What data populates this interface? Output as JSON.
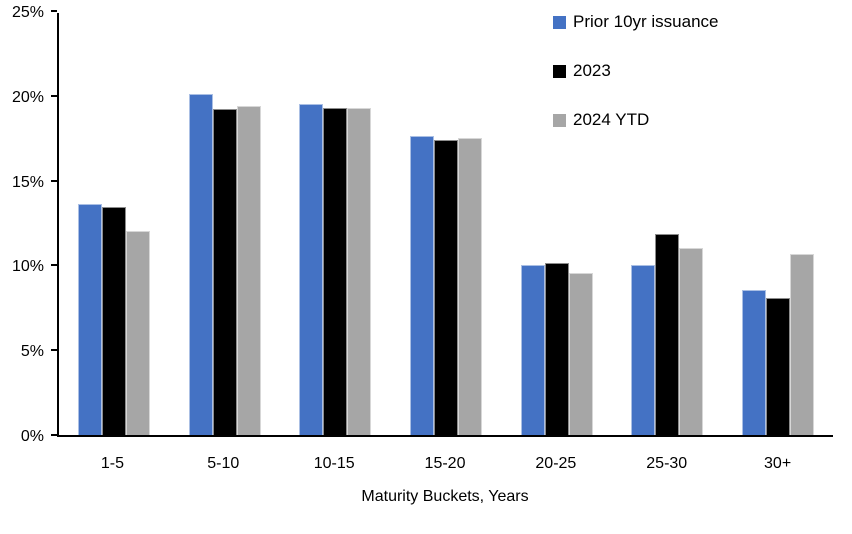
{
  "chart_data": {
    "type": "bar",
    "title": "",
    "categories": [
      "1-5",
      "5-10",
      "10-15",
      "15-20",
      "20-25",
      "25-30",
      "30+"
    ],
    "series": [
      {
        "name": "Prior 10yr issuance",
        "color": "#4472C4",
        "values": [
          13.7,
          20.2,
          19.6,
          17.7,
          10.1,
          10.1,
          8.6
        ]
      },
      {
        "name": "2023",
        "color": "#000000",
        "values": [
          13.5,
          19.3,
          19.4,
          17.5,
          10.2,
          11.9,
          8.1
        ]
      },
      {
        "name": "2024 YTD",
        "color": "#A6A6A6",
        "values": [
          12.1,
          19.5,
          19.4,
          17.6,
          9.6,
          11.1,
          10.7
        ]
      }
    ],
    "xlabel": "Maturity Buckets, Years",
    "ylabel": "",
    "ylim": [
      0,
      25
    ],
    "yticks": [
      {
        "value": 0,
        "label": "0%"
      },
      {
        "value": 5,
        "label": "5%"
      },
      {
        "value": 10,
        "label": "10%"
      },
      {
        "value": 15,
        "label": "15%"
      },
      {
        "value": 20,
        "label": "20%"
      },
      {
        "value": 25,
        "label": "25%"
      }
    ],
    "grid": false,
    "legend_position": "top-right",
    "background_color": "#FFFFFF",
    "axis_color": "#000000"
  }
}
